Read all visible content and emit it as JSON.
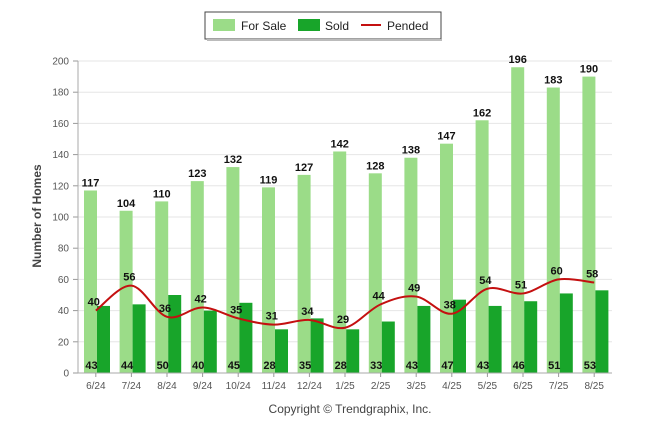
{
  "chart_data": {
    "type": "bar",
    "categories": [
      "6/24",
      "7/24",
      "8/24",
      "9/24",
      "10/24",
      "11/24",
      "12/24",
      "1/25",
      "2/25",
      "3/25",
      "4/25",
      "5/25",
      "6/25",
      "7/25",
      "8/25"
    ],
    "series": [
      {
        "name": "For Sale",
        "type": "bar",
        "color": "#9bdc88",
        "values": [
          117,
          104,
          110,
          123,
          132,
          119,
          127,
          142,
          128,
          138,
          147,
          162,
          196,
          183,
          190
        ]
      },
      {
        "name": "Sold",
        "type": "bar",
        "color": "#18a52a",
        "values": [
          43,
          44,
          50,
          40,
          45,
          28,
          35,
          28,
          33,
          43,
          47,
          43,
          46,
          51,
          53
        ]
      },
      {
        "name": "Pended",
        "type": "line",
        "color": "#c41010",
        "values": [
          40,
          56,
          36,
          42,
          35,
          31,
          34,
          29,
          44,
          49,
          38,
          54,
          51,
          60,
          58
        ]
      }
    ],
    "ylabel": "Number of Homes",
    "ylim": [
      0,
      200
    ],
    "yticks": [
      0,
      20,
      40,
      60,
      80,
      100,
      120,
      140,
      160,
      180,
      200
    ],
    "grid": true,
    "legend": "top-center",
    "credit": "Copyright © Trendgraphix, Inc."
  }
}
